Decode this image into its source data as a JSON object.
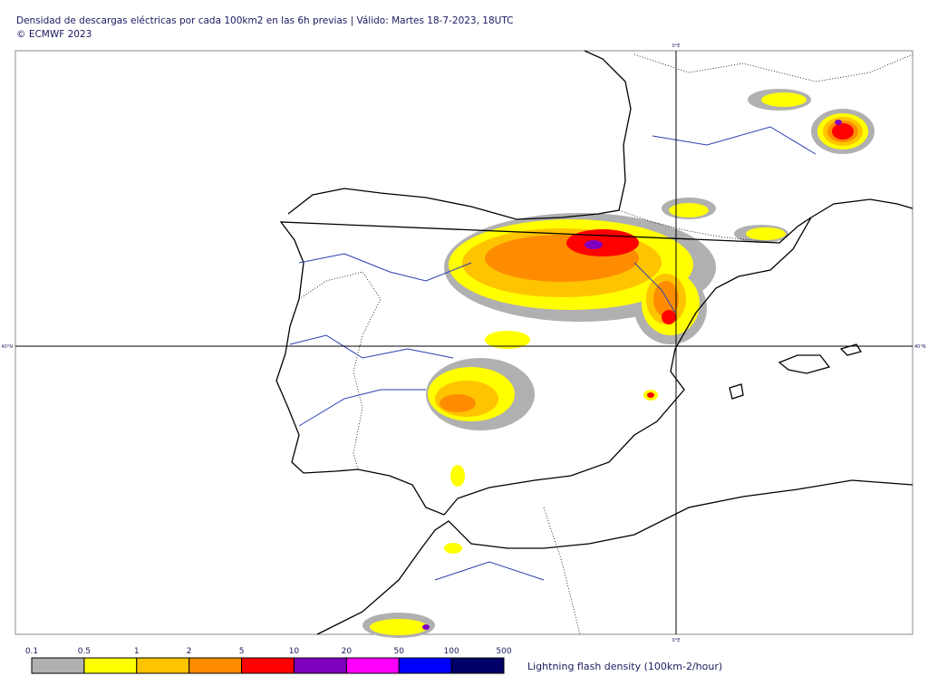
{
  "header": {
    "title": "Densidad de descargas eléctricas por cada 100km2 en las 6h previas | Válido: Martes 18-7-2023, 18UTC",
    "copyright": "© ECMWF 2023"
  },
  "map": {
    "meridian_label_top": "0°E",
    "meridian_label_bottom": "0°E",
    "parallel_label_left": "40°N",
    "parallel_label_right": "40°N"
  },
  "colorbar": {
    "ticks": [
      "0.1",
      "0.5",
      "1",
      "2",
      "5",
      "10",
      "20",
      "50",
      "100",
      "500"
    ],
    "colors": [
      "#b0b0b0",
      "#ffff00",
      "#ffc400",
      "#ff8c00",
      "#ff0000",
      "#8000c0",
      "#ff00ff",
      "#0000ff",
      "#000066"
    ],
    "label": "Lightning flash density (100km-2/hour)"
  }
}
